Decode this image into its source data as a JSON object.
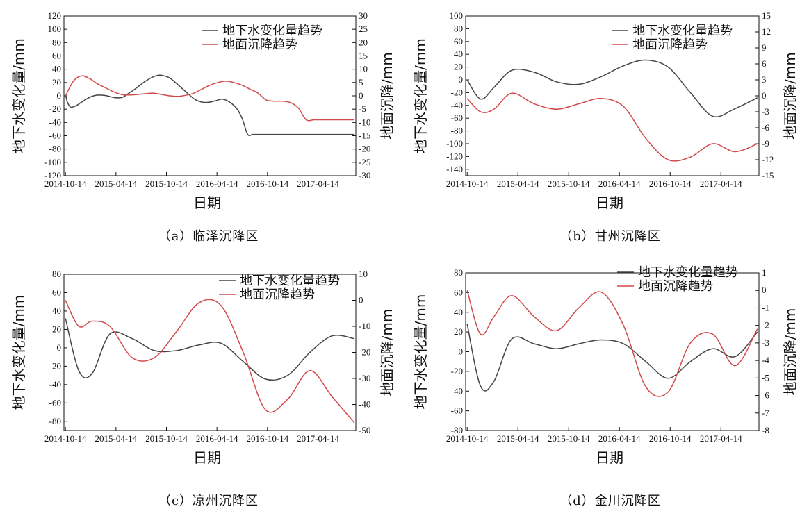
{
  "colors": {
    "groundwater": "#444444",
    "subsidence": "#d24a4a",
    "axis": "#111111"
  },
  "chart_data": [
    {
      "type": "line",
      "caption": "（a）临泽沉降区",
      "xlabel": "日期",
      "ylabel": "地下水变化量/mm",
      "y2label": "地面沉降/mm",
      "x_ticks": [
        "2014-10-14",
        "2015-04-14",
        "2015-10-14",
        "2016-04-14",
        "2016-10-14",
        "2017-04-14"
      ],
      "x": [
        0,
        1,
        2,
        3,
        4,
        5,
        6,
        7,
        8,
        9,
        10,
        11,
        12,
        13,
        14,
        15,
        16,
        17,
        18,
        19,
        20,
        21,
        22,
        23,
        24,
        25,
        26,
        27,
        28,
        29,
        30,
        31,
        32,
        33,
        34,
        35,
        36,
        37,
        38,
        39,
        40,
        41,
        42,
        43,
        44,
        45,
        46,
        47,
        48,
        49,
        50,
        51,
        52,
        53,
        54,
        55
      ],
      "ylim": [
        -120,
        120
      ],
      "ystep": 20,
      "y2lim": [
        -30,
        30
      ],
      "y2step": 5,
      "series": [
        {
          "name": "地下水变化量趋势",
          "axis": "left",
          "color": "#444444",
          "x": [
            0,
            0.4,
            1,
            2,
            3,
            4,
            5,
            6,
            7,
            8,
            9,
            10,
            11,
            12,
            13,
            14,
            15,
            16,
            17,
            18,
            19,
            20,
            21,
            22,
            23,
            24,
            25,
            26,
            27,
            28,
            29,
            30,
            31,
            32,
            33,
            34,
            35,
            36,
            37,
            38,
            39,
            40,
            41,
            42,
            43,
            44,
            45,
            46,
            47,
            48,
            49,
            50,
            51,
            52,
            53,
            54,
            55.5
          ],
          "values": [
            2,
            -10,
            -17,
            -15,
            -10,
            -5,
            -1,
            1,
            1,
            0,
            -2,
            -3,
            -2,
            3,
            8,
            14,
            20,
            25,
            29,
            31,
            30,
            27,
            21,
            14,
            7,
            0,
            -6,
            -9,
            -10,
            -9,
            -7,
            -5,
            -7,
            -12,
            -20,
            -35,
            -58,
            -58,
            -58,
            -58,
            -58,
            -58,
            -58,
            -58,
            -58,
            -58,
            -58,
            -58,
            -58,
            -58,
            -58,
            -58,
            -58,
            -58,
            -58,
            -58,
            -58
          ]
        },
        {
          "name": "地面沉降趋势",
          "axis": "right",
          "color": "#d24a4a",
          "x": [
            0,
            1,
            2,
            3,
            4,
            5,
            6,
            7,
            8,
            9,
            10,
            11,
            12,
            13,
            14,
            15,
            16,
            17,
            18,
            19,
            20,
            21,
            22,
            23,
            24,
            25,
            26,
            27,
            28,
            29,
            30,
            31,
            32,
            33,
            34,
            35,
            36
          ],
          "values": [
            0,
            5.5,
            7.5,
            6.5,
            4.5,
            3,
            1.5,
            0.5,
            0.3,
            0.5,
            0.8,
            1,
            0.5,
            0,
            -0.2,
            0.2,
            1,
            2.5,
            4,
            5,
            5.5,
            5,
            4,
            2.5,
            1,
            -1.5,
            -2,
            -2,
            -2.5,
            -4.5,
            -9,
            -9,
            -9,
            -9,
            -9,
            -9,
            -9
          ]
        }
      ]
    },
    {
      "type": "line",
      "caption": "（b）甘州沉降区",
      "xlabel": "日期",
      "ylabel": "地下水变化量/mm",
      "y2label": "地面沉降/mm",
      "x_ticks": [
        "2014-10-14",
        "2015-04-14",
        "2015-10-14",
        "2016-04-14",
        "2016-10-14",
        "2017-04-14"
      ],
      "ylim": [
        -150,
        100
      ],
      "yticks": [
        -140,
        -120,
        -100,
        -80,
        -60,
        -40,
        -20,
        0,
        20,
        40,
        60,
        80,
        100
      ],
      "y2lim": [
        -15,
        15
      ],
      "y2ticks": [
        -15,
        -12,
        -9,
        -6,
        -3,
        0,
        3,
        6,
        9,
        12,
        15
      ],
      "series": [
        {
          "name": "地下水变化量趋势",
          "axis": "left",
          "color": "#444444",
          "x": [
            0,
            0.3,
            0.6,
            1,
            1.5,
            2,
            2.5,
            3,
            3.5,
            4,
            4.5,
            5,
            5.5,
            6,
            6.5
          ],
          "values": [
            0,
            -30,
            -12,
            15,
            12,
            -3,
            -7,
            5,
            22,
            31,
            20,
            -20,
            -57,
            -45,
            -28
          ]
        },
        {
          "name": "地面沉降趋势",
          "axis": "right",
          "color": "#d24a4a",
          "x": [
            0,
            0.3,
            0.6,
            1,
            1.5,
            2,
            2.5,
            3,
            3.5,
            4,
            4.5,
            5,
            5.5,
            6,
            6.5
          ],
          "values": [
            -0.5,
            -3,
            -2.5,
            0.5,
            -1.5,
            -2.5,
            -1.5,
            -0.5,
            -2,
            -8,
            -12,
            -11.5,
            -9,
            -10.5,
            -9
          ]
        }
      ]
    },
    {
      "type": "line",
      "caption": "（c）凉州沉降区",
      "xlabel": "日期",
      "ylabel": "地下水变化量/mm",
      "y2label": "地面沉降/mm",
      "x_ticks": [
        "2014-10-14",
        "2015-04-14",
        "2015-10-14",
        "2016-04-14",
        "2016-10-14",
        "2017-04-14"
      ],
      "ylim": [
        -90,
        80
      ],
      "yticks": [
        -80,
        -60,
        -40,
        -20,
        0,
        20,
        40,
        60,
        80
      ],
      "y2lim": [
        -50,
        10
      ],
      "y2ticks": [
        -50,
        -40,
        -30,
        -20,
        -10,
        0,
        10
      ],
      "series": [
        {
          "name": "地下水变化量趋势",
          "axis": "left",
          "color": "#444444",
          "x": [
            0,
            0.3,
            0.6,
            1,
            1.5,
            2,
            2.5,
            3,
            3.5,
            4,
            4.5,
            5,
            5.5,
            6,
            6.5
          ],
          "values": [
            32,
            -25,
            -28,
            15,
            10,
            -3,
            -3,
            3,
            5,
            -15,
            -34,
            -30,
            -5,
            13,
            10
          ]
        },
        {
          "name": "地面沉降趋势",
          "axis": "right",
          "color": "#d24a4a",
          "x": [
            0,
            0.3,
            0.6,
            1,
            1.5,
            2,
            2.5,
            3,
            3.5,
            4,
            4.5,
            5,
            5.5,
            6,
            6.5
          ],
          "values": [
            0,
            -10,
            -8,
            -10,
            -22,
            -22,
            -12,
            -1,
            -2,
            -20,
            -42,
            -38,
            -27,
            -37,
            -47
          ]
        }
      ]
    },
    {
      "type": "line",
      "caption": "（d）金川沉降区",
      "xlabel": "日期",
      "ylabel": "地下水变化量/mm",
      "y2label": "地面沉降/mm",
      "x_ticks": [
        "2014-10-14",
        "2015-04-14",
        "2015-10-14",
        "2016-04-14",
        "2016-10-14",
        "2017-04-14"
      ],
      "ylim": [
        -80,
        80
      ],
      "yticks": [
        -80,
        -60,
        -40,
        -20,
        0,
        20,
        40,
        60,
        80
      ],
      "y2lim": [
        -8,
        1
      ],
      "y2ticks": [
        -8,
        -7,
        -6,
        -5,
        -4,
        -3,
        -2,
        -1,
        0,
        1
      ],
      "series": [
        {
          "name": "地下水变化量趋势",
          "axis": "left",
          "color": "#444444",
          "x": [
            0,
            0.3,
            0.6,
            1,
            1.5,
            2,
            2.5,
            3,
            3.5,
            4,
            4.5,
            5,
            5.5,
            6,
            6.5
          ],
          "values": [
            28,
            -35,
            -30,
            13,
            8,
            3,
            8,
            12,
            8,
            -10,
            -27,
            -10,
            3,
            -5,
            20
          ]
        },
        {
          "name": "地面沉降趋势",
          "axis": "right",
          "color": "#d24a4a",
          "x": [
            0,
            0.3,
            0.6,
            1,
            1.5,
            2,
            2.5,
            3,
            3.5,
            4,
            4.5,
            5,
            5.5,
            6,
            6.5
          ],
          "values": [
            0,
            -2.5,
            -1.5,
            -0.3,
            -1.5,
            -2.3,
            -1,
            -0.1,
            -2,
            -5.5,
            -5.8,
            -3,
            -2.5,
            -4.3,
            -2.2
          ]
        }
      ]
    }
  ]
}
